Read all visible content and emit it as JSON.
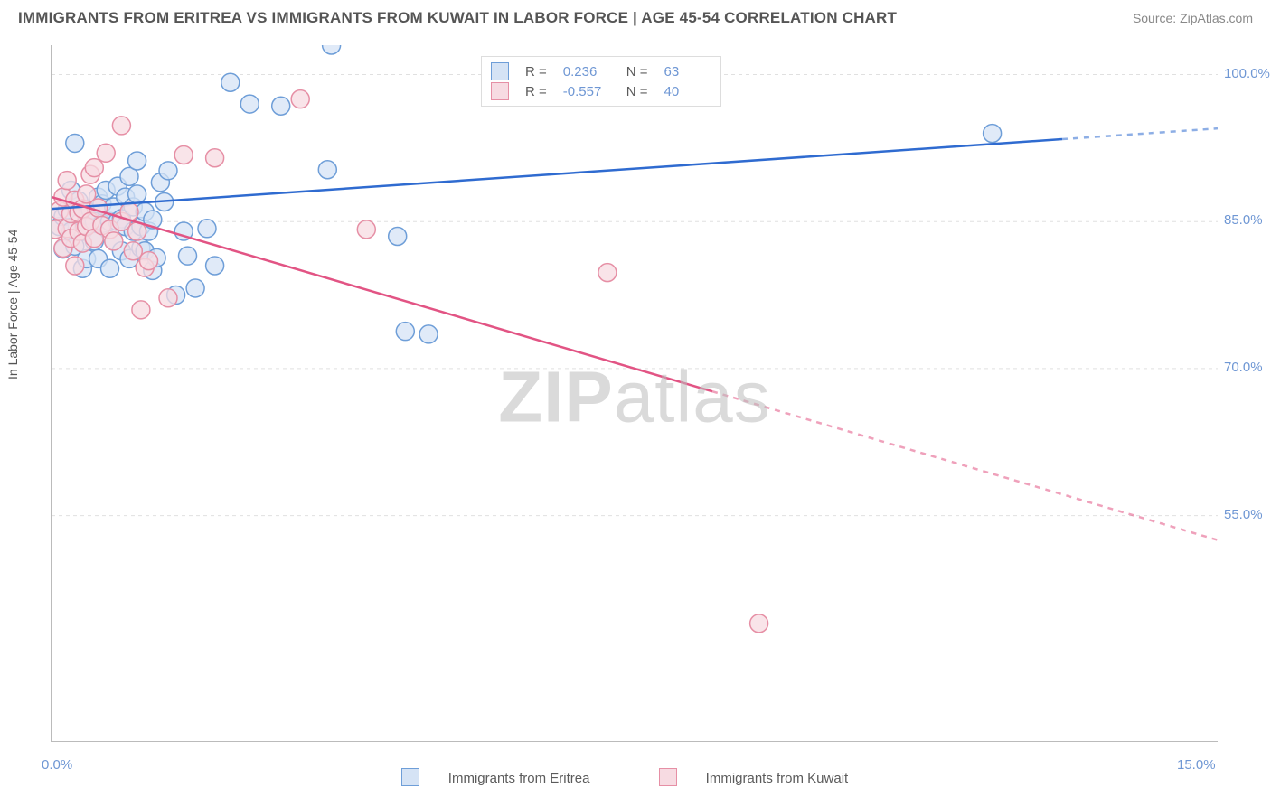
{
  "title": "IMMIGRANTS FROM ERITREA VS IMMIGRANTS FROM KUWAIT IN LABOR FORCE | AGE 45-54 CORRELATION CHART",
  "source": "Source: ZipAtlas.com",
  "y_axis_title": "In Labor Force | Age 45-54",
  "watermark_bold": "ZIP",
  "watermark_rest": "atlas",
  "chart": {
    "type": "scatter",
    "background_color": "#ffffff",
    "grid_color": "#e0e0e0",
    "axis_color": "#bbbbbb",
    "tick_color": "#6f97d4",
    "xlim": [
      0.0,
      15.0
    ],
    "ylim": [
      32.0,
      103.0
    ],
    "x_ticks": [
      0.0,
      1.667,
      3.333,
      5.0,
      6.667,
      8.333,
      10.0,
      11.667,
      13.333,
      15.0
    ],
    "x_tick_labels": {
      "first": "0.0%",
      "last": "15.0%"
    },
    "y_ticks": [
      55.0,
      70.0,
      85.0,
      100.0
    ],
    "y_tick_labels": [
      "55.0%",
      "70.0%",
      "85.0%",
      "100.0%"
    ],
    "series": [
      {
        "name": "Immigrants from Eritrea",
        "color_fill": "#d5e3f5",
        "color_stroke": "#6e9ed8",
        "line_color": "#2f6bd0",
        "marker_radius": 10,
        "line_width": 2.5,
        "correlation": {
          "R": 0.236,
          "N": 63
        },
        "trend": {
          "x1": 0.0,
          "y1": 86.3,
          "x2": 15.0,
          "y2": 94.5,
          "extrapolated_from": 13.0
        },
        "points": [
          [
            0.1,
            84.5
          ],
          [
            0.15,
            82.2
          ],
          [
            0.15,
            85.5
          ],
          [
            0.2,
            86.2
          ],
          [
            0.25,
            88.2
          ],
          [
            0.25,
            84.0
          ],
          [
            0.3,
            93.0
          ],
          [
            0.3,
            82.5
          ],
          [
            0.35,
            87.1
          ],
          [
            0.4,
            84.0
          ],
          [
            0.4,
            80.2
          ],
          [
            0.45,
            81.2
          ],
          [
            0.45,
            85.6
          ],
          [
            0.5,
            86.2
          ],
          [
            0.55,
            83.0
          ],
          [
            0.55,
            85.0
          ],
          [
            0.6,
            87.5
          ],
          [
            0.6,
            81.2
          ],
          [
            0.65,
            86.8
          ],
          [
            0.65,
            84.8
          ],
          [
            0.7,
            88.2
          ],
          [
            0.75,
            80.2
          ],
          [
            0.75,
            85.0
          ],
          [
            0.8,
            86.5
          ],
          [
            0.8,
            83.0
          ],
          [
            0.85,
            85.0
          ],
          [
            0.85,
            88.6
          ],
          [
            0.9,
            82.0
          ],
          [
            0.9,
            85.3
          ],
          [
            0.95,
            84.5
          ],
          [
            0.95,
            87.5
          ],
          [
            1.0,
            89.6
          ],
          [
            1.0,
            81.2
          ],
          [
            1.05,
            84.0
          ],
          [
            1.05,
            86.5
          ],
          [
            1.1,
            87.8
          ],
          [
            1.1,
            91.2
          ],
          [
            1.15,
            82.3
          ],
          [
            1.15,
            84.5
          ],
          [
            1.2,
            86.0
          ],
          [
            1.2,
            82.0
          ],
          [
            1.25,
            84.0
          ],
          [
            1.3,
            80.0
          ],
          [
            1.3,
            85.2
          ],
          [
            1.35,
            81.3
          ],
          [
            1.4,
            89.0
          ],
          [
            1.45,
            87.0
          ],
          [
            1.5,
            90.2
          ],
          [
            1.6,
            77.5
          ],
          [
            1.7,
            84.0
          ],
          [
            1.75,
            81.5
          ],
          [
            1.85,
            78.2
          ],
          [
            2.0,
            84.3
          ],
          [
            2.1,
            80.5
          ],
          [
            2.3,
            99.2
          ],
          [
            2.55,
            97.0
          ],
          [
            2.95,
            96.8
          ],
          [
            3.55,
            90.3
          ],
          [
            3.6,
            103.0
          ],
          [
            4.45,
            83.5
          ],
          [
            4.55,
            73.8
          ],
          [
            4.85,
            73.5
          ],
          [
            12.1,
            94.0
          ]
        ]
      },
      {
        "name": "Immigrants from Kuwait",
        "color_fill": "#f7dbe2",
        "color_stroke": "#e68fa5",
        "line_color": "#e25484",
        "marker_radius": 10,
        "line_width": 2.5,
        "correlation": {
          "R": -0.557,
          "N": 40
        },
        "trend": {
          "x1": 0.0,
          "y1": 87.5,
          "x2": 15.0,
          "y2": 52.5,
          "extrapolated_from": 8.5
        },
        "points": [
          [
            0.05,
            84.2
          ],
          [
            0.1,
            86.1
          ],
          [
            0.15,
            82.3
          ],
          [
            0.15,
            87.5
          ],
          [
            0.2,
            84.3
          ],
          [
            0.2,
            89.2
          ],
          [
            0.25,
            83.3
          ],
          [
            0.25,
            85.8
          ],
          [
            0.3,
            87.2
          ],
          [
            0.3,
            80.5
          ],
          [
            0.35,
            84.0
          ],
          [
            0.35,
            85.9
          ],
          [
            0.4,
            86.3
          ],
          [
            0.4,
            82.8
          ],
          [
            0.45,
            87.8
          ],
          [
            0.45,
            84.5
          ],
          [
            0.5,
            89.8
          ],
          [
            0.5,
            85.0
          ],
          [
            0.55,
            83.3
          ],
          [
            0.55,
            90.5
          ],
          [
            0.6,
            86.4
          ],
          [
            0.65,
            84.6
          ],
          [
            0.7,
            92.0
          ],
          [
            0.75,
            84.2
          ],
          [
            0.8,
            83.0
          ],
          [
            0.9,
            85.0
          ],
          [
            0.9,
            94.8
          ],
          [
            1.0,
            86.0
          ],
          [
            1.05,
            82.0
          ],
          [
            1.1,
            84.0
          ],
          [
            1.15,
            76.0
          ],
          [
            1.2,
            80.3
          ],
          [
            1.25,
            81.0
          ],
          [
            1.5,
            77.2
          ],
          [
            1.7,
            91.8
          ],
          [
            2.1,
            91.5
          ],
          [
            3.2,
            97.5
          ],
          [
            4.05,
            84.2
          ],
          [
            7.15,
            79.8
          ],
          [
            9.1,
            44.0
          ]
        ]
      }
    ]
  },
  "legend_top": {
    "rows": [
      {
        "sw_fill": "#d5e3f5",
        "sw_stroke": "#6e9ed8",
        "R_label": "R =",
        "R": "0.236",
        "N_label": "N =",
        "N": "63"
      },
      {
        "sw_fill": "#f7dbe2",
        "sw_stroke": "#e68fa5",
        "R_label": "R =",
        "R": "-0.557",
        "N_label": "N =",
        "N": "40"
      }
    ]
  },
  "legend_bottom": {
    "items": [
      {
        "sw_fill": "#d5e3f5",
        "sw_stroke": "#6e9ed8",
        "label": "Immigrants from Eritrea"
      },
      {
        "sw_fill": "#f7dbe2",
        "sw_stroke": "#e68fa5",
        "label": "Immigrants from Kuwait"
      }
    ]
  }
}
